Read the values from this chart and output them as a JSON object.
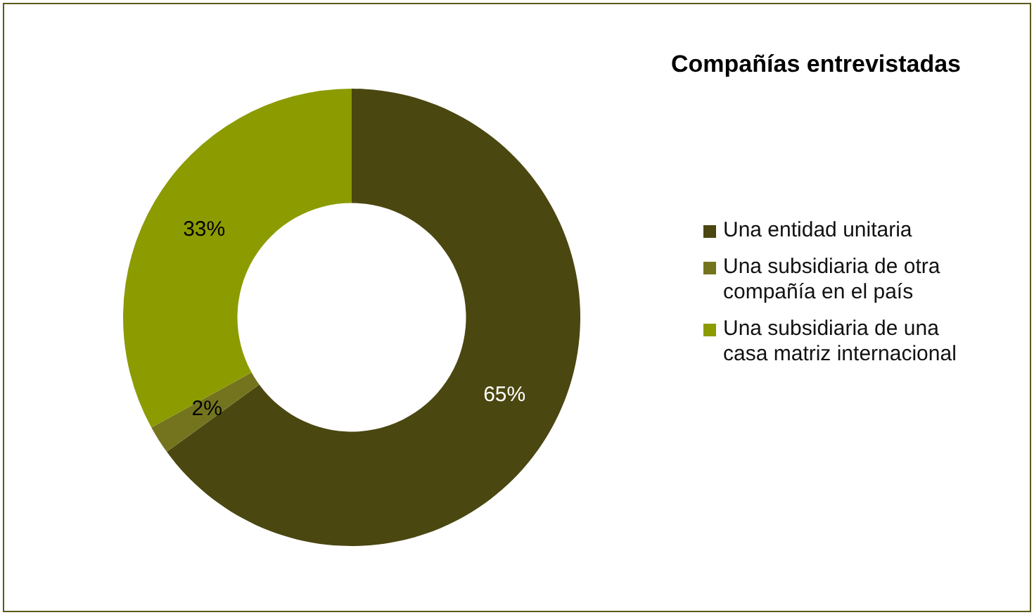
{
  "chart_data": {
    "type": "donut",
    "title": "Compañías entrevistadas",
    "categories": [
      "Una entidad unitaria",
      "Una subsidiaria de otra compañía en el país",
      "Una subsidiaria de una casa matriz internacional"
    ],
    "values": [
      65,
      2,
      33
    ],
    "colors": [
      "#4a4710",
      "#74741f",
      "#8c9b00"
    ],
    "value_labels": [
      "65%",
      "2%",
      "33%"
    ],
    "legend": "right"
  }
}
